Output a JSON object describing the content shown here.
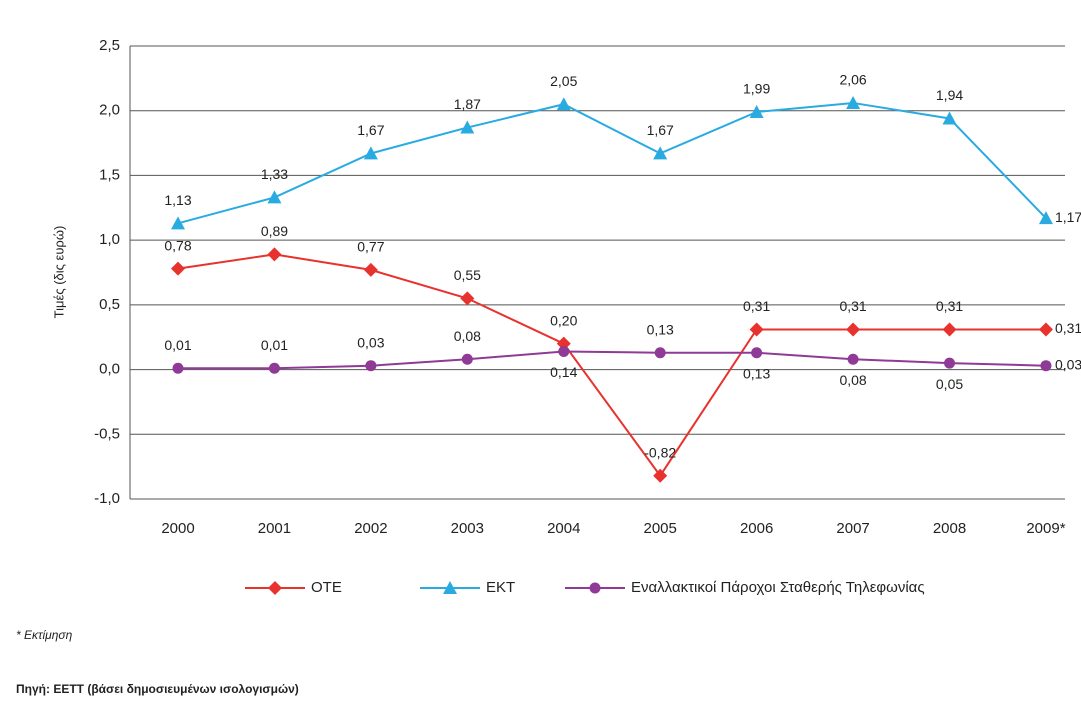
{
  "chart_data": {
    "type": "line",
    "y_label": "Τιμές (δις ευρώ)",
    "categories": [
      "2000",
      "2001",
      "2002",
      "2003",
      "2004",
      "2005",
      "2006",
      "2007",
      "2008",
      "2009*"
    ],
    "ylim": [
      -1.0,
      2.5
    ],
    "yticks": [
      {
        "value": -1.0,
        "label": "-1,0"
      },
      {
        "value": -0.5,
        "label": "-0,5"
      },
      {
        "value": 0,
        "label": "0,0"
      },
      {
        "value": 0.5,
        "label": "0,5"
      },
      {
        "value": 1.0,
        "label": "1,0"
      },
      {
        "value": 1.5,
        "label": "1,5"
      },
      {
        "value": 2.0,
        "label": "2,0"
      },
      {
        "value": 2.5,
        "label": "2,5"
      }
    ],
    "grid": true,
    "series": [
      {
        "name": "ΟΤΕ",
        "color": "#e8322d",
        "marker": "diamond",
        "values": [
          0.78,
          0.89,
          0.77,
          0.55,
          0.2,
          -0.82,
          0.31,
          0.31,
          0.31,
          0.31
        ],
        "value_labels": [
          "0,78",
          "0,89",
          "0,77",
          "0,55",
          "0,20",
          "-0,82",
          "0,31",
          "0,31",
          "0,31",
          "0,31"
        ]
      },
      {
        "name": "ΕΚΤ",
        "color": "#29abe2",
        "marker": "triangle",
        "values": [
          1.13,
          1.33,
          1.67,
          1.87,
          2.05,
          1.67,
          1.99,
          2.06,
          1.94,
          1.17
        ],
        "value_labels": [
          "1,13",
          "1,33",
          "1,67",
          "1,87",
          "2,05",
          "1,67",
          "1,99",
          "2,06",
          "1,94",
          "1,17"
        ]
      },
      {
        "name": "Εναλλακτικοί Πάροχοι Σταθερής Τηλεφωνίας",
        "color": "#8e3a96",
        "marker": "circle",
        "values": [
          0.01,
          0.01,
          0.03,
          0.08,
          0.14,
          0.13,
          0.13,
          0.08,
          0.05,
          0.03
        ],
        "value_labels": [
          "0,01",
          "0,01",
          "0,03",
          "0,08",
          "0,14",
          "0,13",
          "0,13",
          "0,08",
          "0,05",
          "0,03"
        ]
      }
    ],
    "legend_position": "bottom",
    "footnote": "* Εκτίμηση",
    "source": "Πηγή: ΕΕΤΤ (βάσει δημοσιευμένων ισολογισμών)"
  }
}
